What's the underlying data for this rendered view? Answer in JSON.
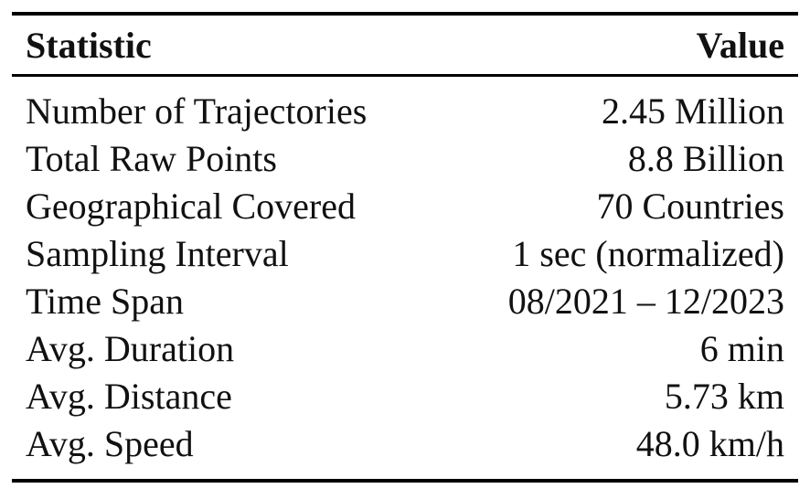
{
  "colors": {
    "text": "#111111",
    "rule": "#000000",
    "background": "#ffffff"
  },
  "table": {
    "header": {
      "statistic": "Statistic",
      "value": "Value"
    },
    "rows": [
      {
        "label": "Number of Trajectories",
        "value": "2.45 Million"
      },
      {
        "label": "Total Raw Points",
        "value": "8.8 Billion"
      },
      {
        "label": "Geographical Covered",
        "value": "70 Countries"
      },
      {
        "label": "Sampling Interval",
        "value": "1 sec (normalized)"
      },
      {
        "label": "Time Span",
        "value": "08/2021 – 12/2023"
      },
      {
        "label": "Avg. Duration",
        "value": "6 min"
      },
      {
        "label": "Avg. Distance",
        "value": "5.73 km"
      },
      {
        "label": "Avg. Speed",
        "value": "48.0 km/h"
      }
    ]
  }
}
